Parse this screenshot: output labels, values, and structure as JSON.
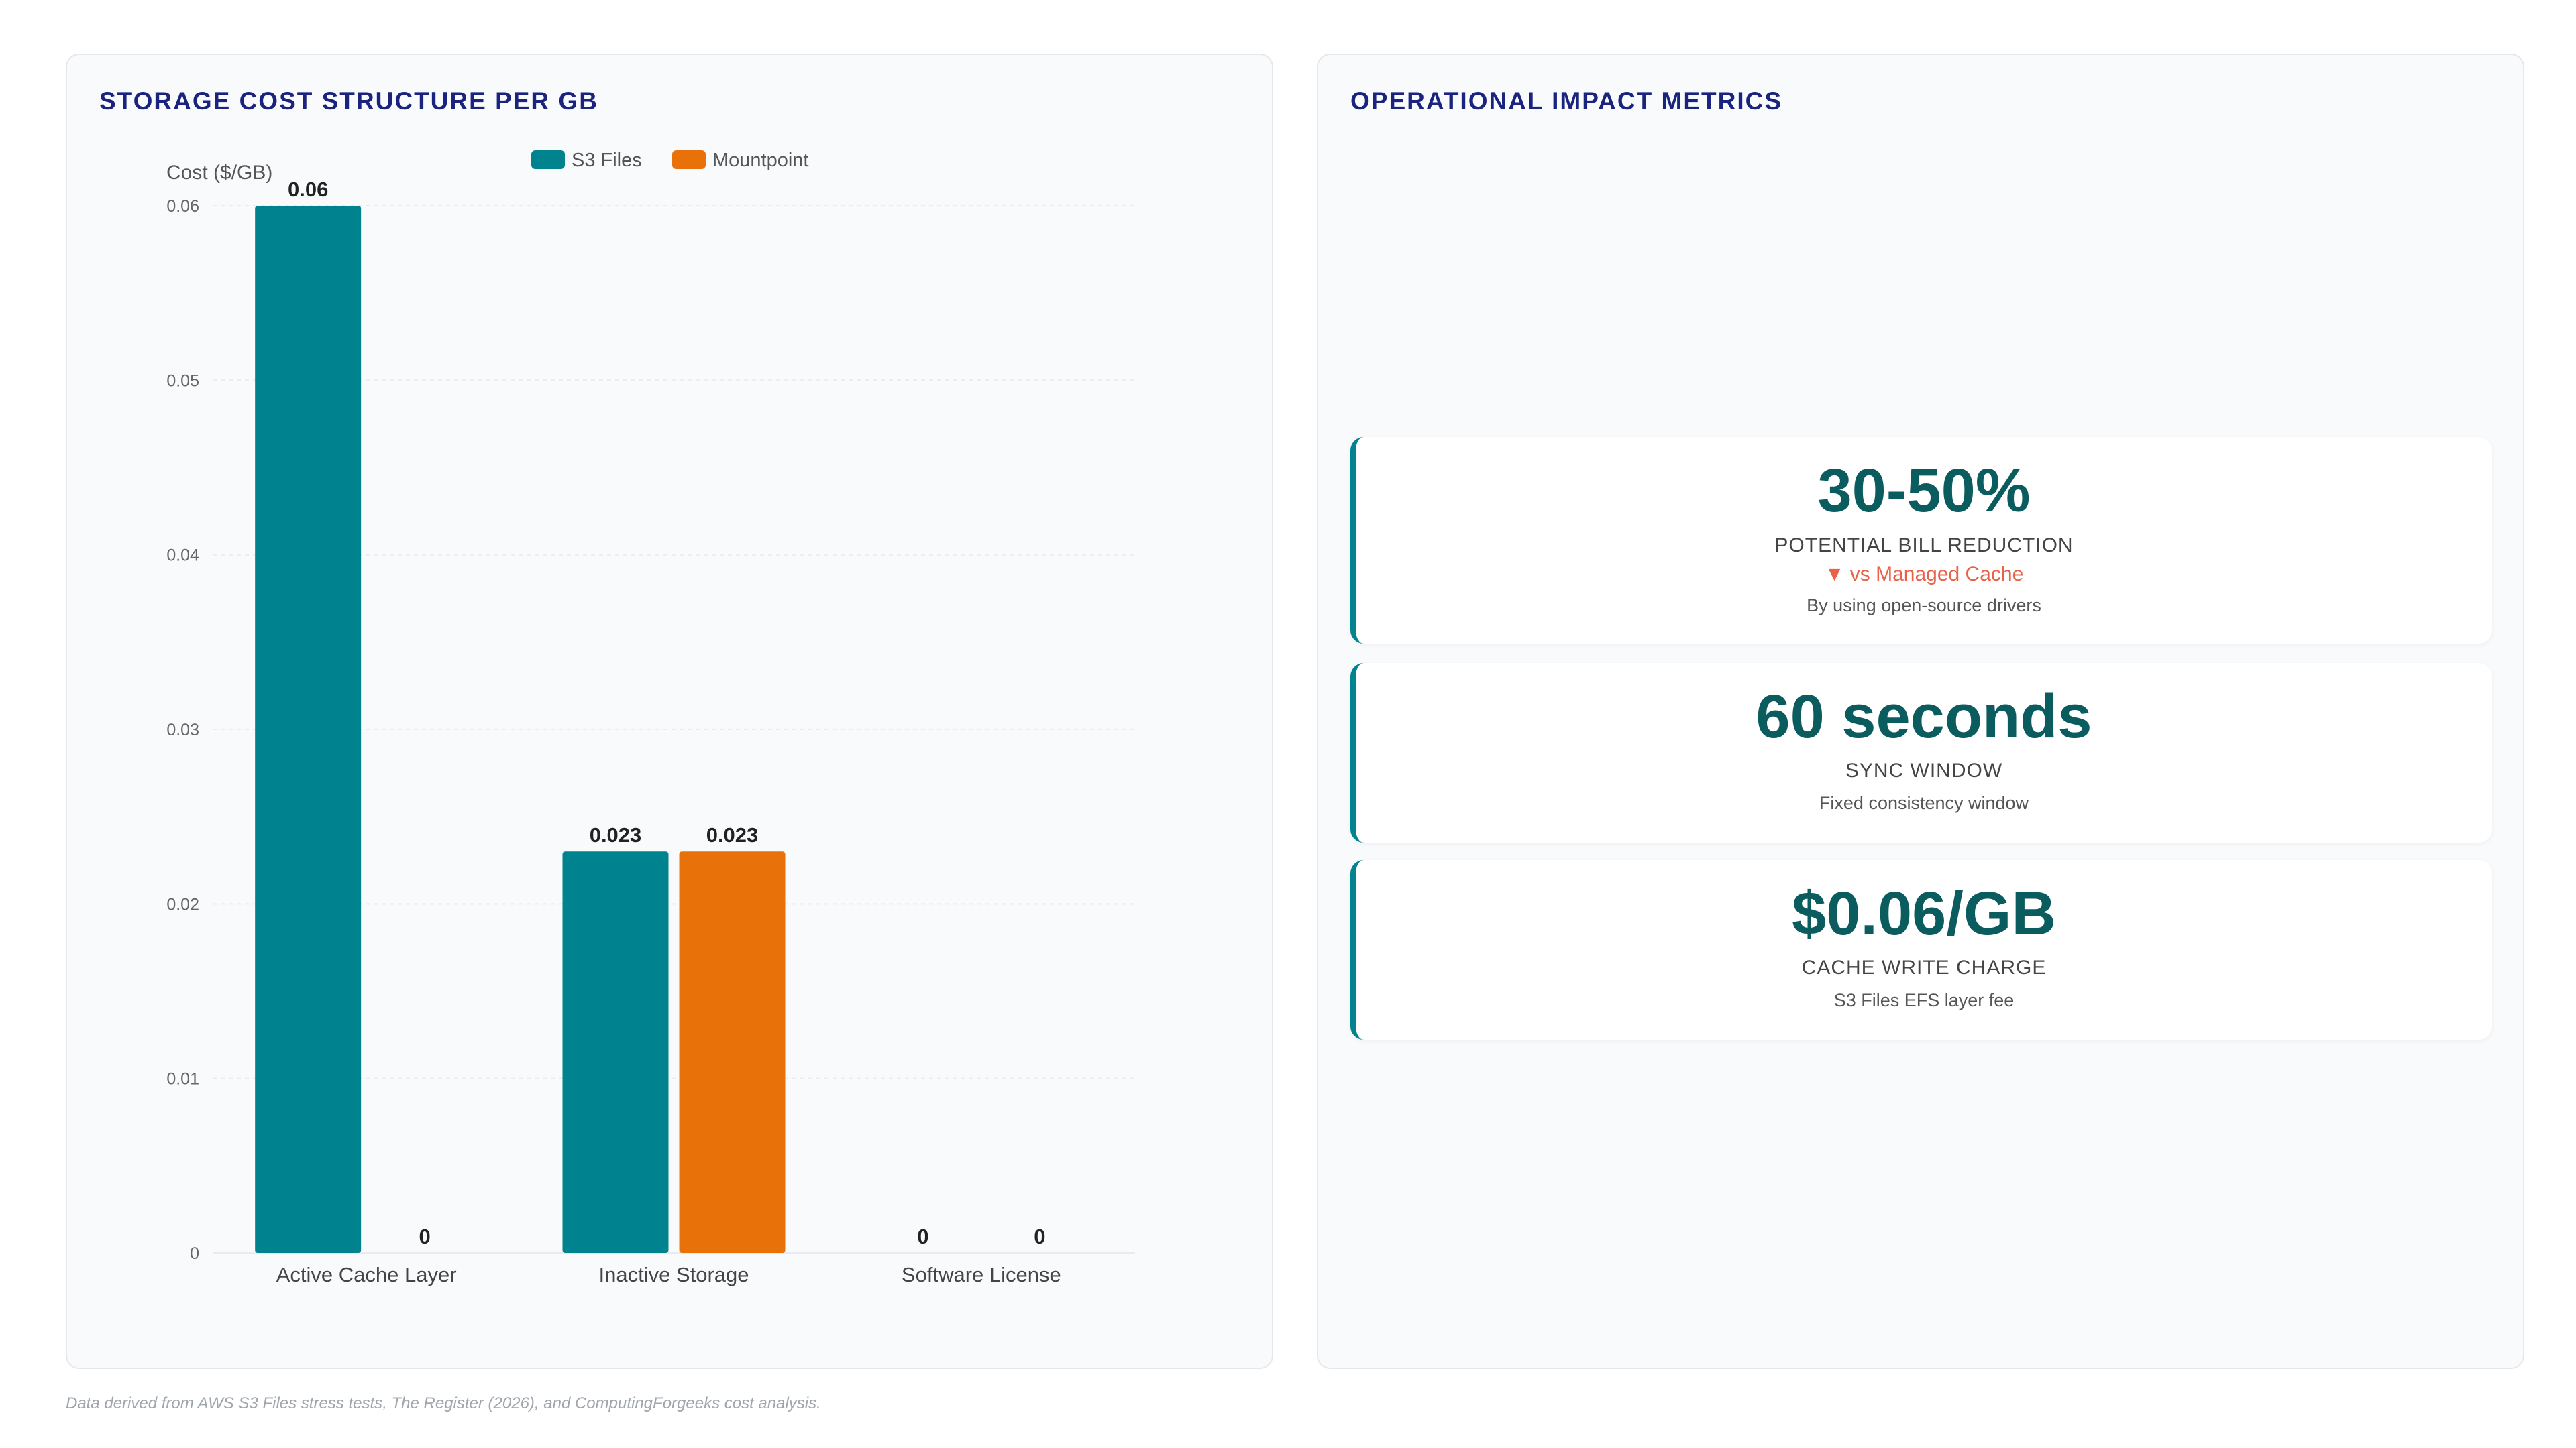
{
  "left_panel": {
    "title": "STORAGE COST STRUCTURE PER GB"
  },
  "right_panel": {
    "title": "OPERATIONAL IMPACT METRICS"
  },
  "chart_data": {
    "type": "bar",
    "title": "STORAGE COST STRUCTURE PER GB",
    "ylabel": "Cost ($/GB)",
    "xlabel": "",
    "categories": [
      "Active Cache Layer",
      "Inactive Storage",
      "Software License"
    ],
    "series": [
      {
        "name": "S3 Files",
        "color": "#00838f",
        "values": [
          0.06,
          0.023,
          0
        ]
      },
      {
        "name": "Mountpoint",
        "color": "#e8710a",
        "values": [
          0,
          0.023,
          0
        ]
      }
    ],
    "ylim": [
      0,
      0.06
    ],
    "yticks": [
      "0",
      "0.01",
      "0.02",
      "0.03",
      "0.04",
      "0.05",
      "0.06"
    ],
    "grid": true,
    "legend": "top-center",
    "data_labels": true
  },
  "metrics": [
    {
      "value": "30-50%",
      "label": "POTENTIAL BILL REDUCTION",
      "trend": "▼ vs Managed Cache",
      "desc": "By using open-source drivers"
    },
    {
      "value": "60 seconds",
      "label": "SYNC WINDOW",
      "desc": "Fixed consistency window"
    },
    {
      "value": "$0.06/GB",
      "label": "CACHE WRITE CHARGE",
      "desc": "S3 Files EFS layer fee"
    }
  ],
  "footnote": "Data derived from AWS S3 Files stress tests, The Register (2026), and ComputingForgeeks cost analysis.",
  "colors": {
    "accent": "#00838f",
    "title": "#1a237e",
    "metric_value": "#0b5c5f",
    "trend_down": "#e8624a"
  }
}
